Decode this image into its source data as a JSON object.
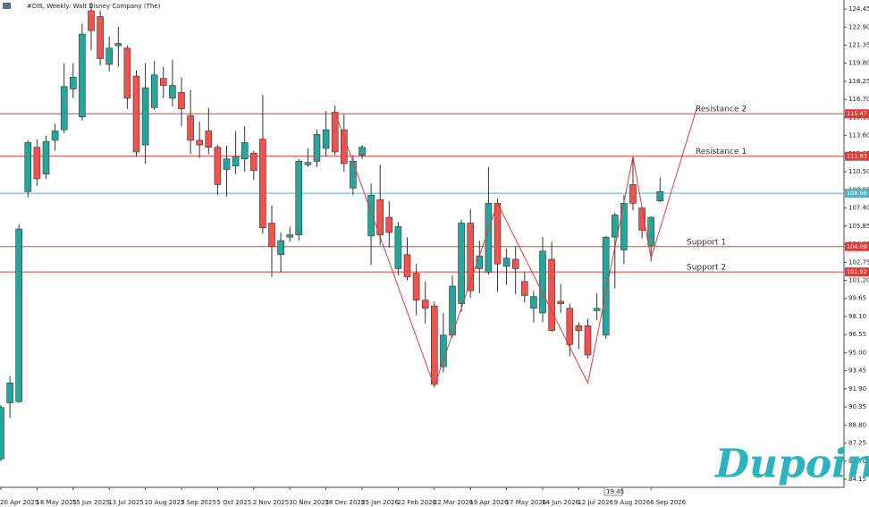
{
  "chart_data": {
    "type": "candlestick",
    "title": "#DIS, Weekly: Walt Disney Company (The)",
    "up_color": "#26a69a",
    "down_color": "#ef5350",
    "categories": [
      "20 Apr 2025",
      null,
      null,
      null,
      "18 May 2025",
      null,
      null,
      null,
      "15 Jun 2025",
      null,
      null,
      null,
      "13 Jul 2025",
      null,
      null,
      null,
      "10 Aug 2025",
      null,
      null,
      null,
      "7 Sep 2025",
      null,
      null,
      null,
      "5 Oct 2025",
      null,
      null,
      null,
      "2 Nov 2025",
      null,
      null,
      null,
      "30 Nov 2025",
      null,
      null,
      null,
      "28 Dec 2025",
      null,
      null,
      null,
      "25 Jan 2026",
      null,
      null,
      null,
      "22 Feb 2026",
      null,
      null,
      null,
      "22 Mar 2026",
      null,
      null,
      null,
      "19 Apr 2026",
      null,
      null,
      null,
      "17 May 2026",
      null,
      null,
      null,
      "14 Jun 2026",
      null,
      null,
      null,
      "12 Jul 2026",
      null,
      null,
      null,
      "9 Aug 2026",
      null,
      null,
      null,
      "6 Sep 2026",
      null
    ],
    "open": [
      85.9,
      90.7,
      90.8,
      108.8,
      112.6,
      110.3,
      113.2,
      114.1,
      117.6,
      115.2,
      124.3,
      123.8,
      119.7,
      121.3,
      121.1,
      118.7,
      112.8,
      116.0,
      118.5,
      116.8,
      117.3,
      115.3,
      113.2,
      114.0,
      112.6,
      110.7,
      111.0,
      111.6,
      112.1,
      113.3,
      106.1,
      103.4,
      104.9,
      105.1,
      111.1,
      111.4,
      112.5,
      115.6,
      114.1,
      109.1,
      111.9,
      105.0,
      108.1,
      106.6,
      102.2,
      103.4,
      101.8,
      99.5,
      99.0,
      93.8,
      96.5,
      99.2,
      106.1,
      102.2,
      101.9,
      107.8,
      102.4,
      103.0,
      101.1,
      98.8,
      98.4,
      103.0,
      99.4,
      98.8,
      97.3,
      97.3,
      98.6,
      96.5,
      104.9,
      103.8,
      109.4,
      107.4,
      104.2,
      108.0
    ],
    "high": [
      90.5,
      93.0,
      106.0,
      113.2,
      113.3,
      113.6,
      114.6,
      119.8,
      119.8,
      123.2,
      125.0,
      124.3,
      122.1,
      122.9,
      121.3,
      119.2,
      119.8,
      120.0,
      119.5,
      120.1,
      118.6,
      117.5,
      114.8,
      116.0,
      112.8,
      112.7,
      114.0,
      114.4,
      112.3,
      117.1,
      107.6,
      105.3,
      105.8,
      111.6,
      112.5,
      114.1,
      115.7,
      116.2,
      115.4,
      111.9,
      112.8,
      109.5,
      111.1,
      108.0,
      106.2,
      104.9,
      102.6,
      101.1,
      99.4,
      98.4,
      101.6,
      106.4,
      107.3,
      104.6,
      110.9,
      108.2,
      103.9,
      104.1,
      101.9,
      100.3,
      104.9,
      104.5,
      100.9,
      99.2,
      97.6,
      97.9,
      100.1,
      105.0,
      107.0,
      108.5,
      111.8,
      107.5,
      106.7,
      110.0
    ],
    "low": [
      85.7,
      89.4,
      90.7,
      108.3,
      109.3,
      109.9,
      112.3,
      113.8,
      116.8,
      114.9,
      120.9,
      119.6,
      119.1,
      119.5,
      115.9,
      111.8,
      111.2,
      115.8,
      116.8,
      116.1,
      114.4,
      112.0,
      111.7,
      112.0,
      108.5,
      108.4,
      110.3,
      110.5,
      109.8,
      105.2,
      101.5,
      101.9,
      104.5,
      104.6,
      110.9,
      110.9,
      111.8,
      111.9,
      110.5,
      108.5,
      111.6,
      102.5,
      104.2,
      104.0,
      101.6,
      101.2,
      98.2,
      97.5,
      92.0,
      93.3,
      96.3,
      98.5,
      99.7,
      100.1,
      101.7,
      100.2,
      100.8,
      100.0,
      99.3,
      97.6,
      97.6,
      96.8,
      98.4,
      94.7,
      95.3,
      94.5,
      97.8,
      96.2,
      100.5,
      102.6,
      107.2,
      104.8,
      102.8,
      107.9
    ],
    "close": [
      90.3,
      92.4,
      105.6,
      113.0,
      109.9,
      113.1,
      114.0,
      117.8,
      118.6,
      122.3,
      122.6,
      120.2,
      121.1,
      121.5,
      116.8,
      112.2,
      117.7,
      118.8,
      117.9,
      117.9,
      115.9,
      113.2,
      112.8,
      112.6,
      109.4,
      111.6,
      111.8,
      113.0,
      110.6,
      105.7,
      104.1,
      104.6,
      105.1,
      111.4,
      111.3,
      113.7,
      114.1,
      112.2,
      111.2,
      111.4,
      112.6,
      108.5,
      105.1,
      105.3,
      105.8,
      101.5,
      99.5,
      98.8,
      92.3,
      96.5,
      100.7,
      106.1,
      100.3,
      103.3,
      107.8,
      102.6,
      103.1,
      102.2,
      99.9,
      99.8,
      103.7,
      96.9,
      99.2,
      95.7,
      96.9,
      94.8,
      98.8,
      104.9,
      106.8,
      107.8,
      107.8,
      105.5,
      106.6,
      108.8
    ],
    "ylim": [
      83.46,
      125.22
    ],
    "yticks": [
      124.45,
      {
        "value": 122.9,
        "label": "122.90"
      },
      121.35,
      {
        "value": 119.8,
        "label": "119.80"
      },
      118.25,
      {
        "value": 116.7,
        "label": "116.70"
      },
      115.15,
      {
        "value": 113.6,
        "label": "113.60"
      },
      112.05,
      {
        "value": 110.5,
        "label": "110.50"
      },
      108.95,
      {
        "value": 107.4,
        "label": "107.40"
      },
      105.85,
      {
        "value": 104.3,
        "label": "104.30"
      },
      102.75,
      {
        "value": 101.2,
        "label": "101.20"
      },
      99.65,
      {
        "value": 98.1,
        "label": "98.10"
      },
      96.55,
      {
        "value": 95,
        "label": "95.00"
      },
      93.45,
      {
        "value": 91.9,
        "label": "91.90"
      },
      90.35,
      {
        "value": 88.8,
        "label": "88.80"
      },
      87.25,
      {
        "value": 85.7,
        "label": "85.70"
      },
      84.15
    ],
    "levels": [
      {
        "value": 115.47,
        "name": "Resistance 2",
        "color": "#e53935"
      },
      {
        "value": 111.83,
        "name": "Resistance 1",
        "color": "#e53935"
      },
      {
        "value": 108.66,
        "color": "#4fb3bf"
      },
      {
        "value": 104.09,
        "name": "Support 1",
        "color": "#e53935"
      },
      {
        "value": 101.92,
        "name": "Support 2",
        "color": "#e53935"
      }
    ],
    "zigzag": {
      "color": "#e53935",
      "x": [
        37,
        48,
        55,
        65,
        70,
        72,
        77
      ],
      "values": [
        115.6,
        92.1,
        107.8,
        92.4,
        111.8,
        103.1,
        115.8
      ]
    },
    "time_label": "19:45",
    "logo": "Dupoin"
  }
}
